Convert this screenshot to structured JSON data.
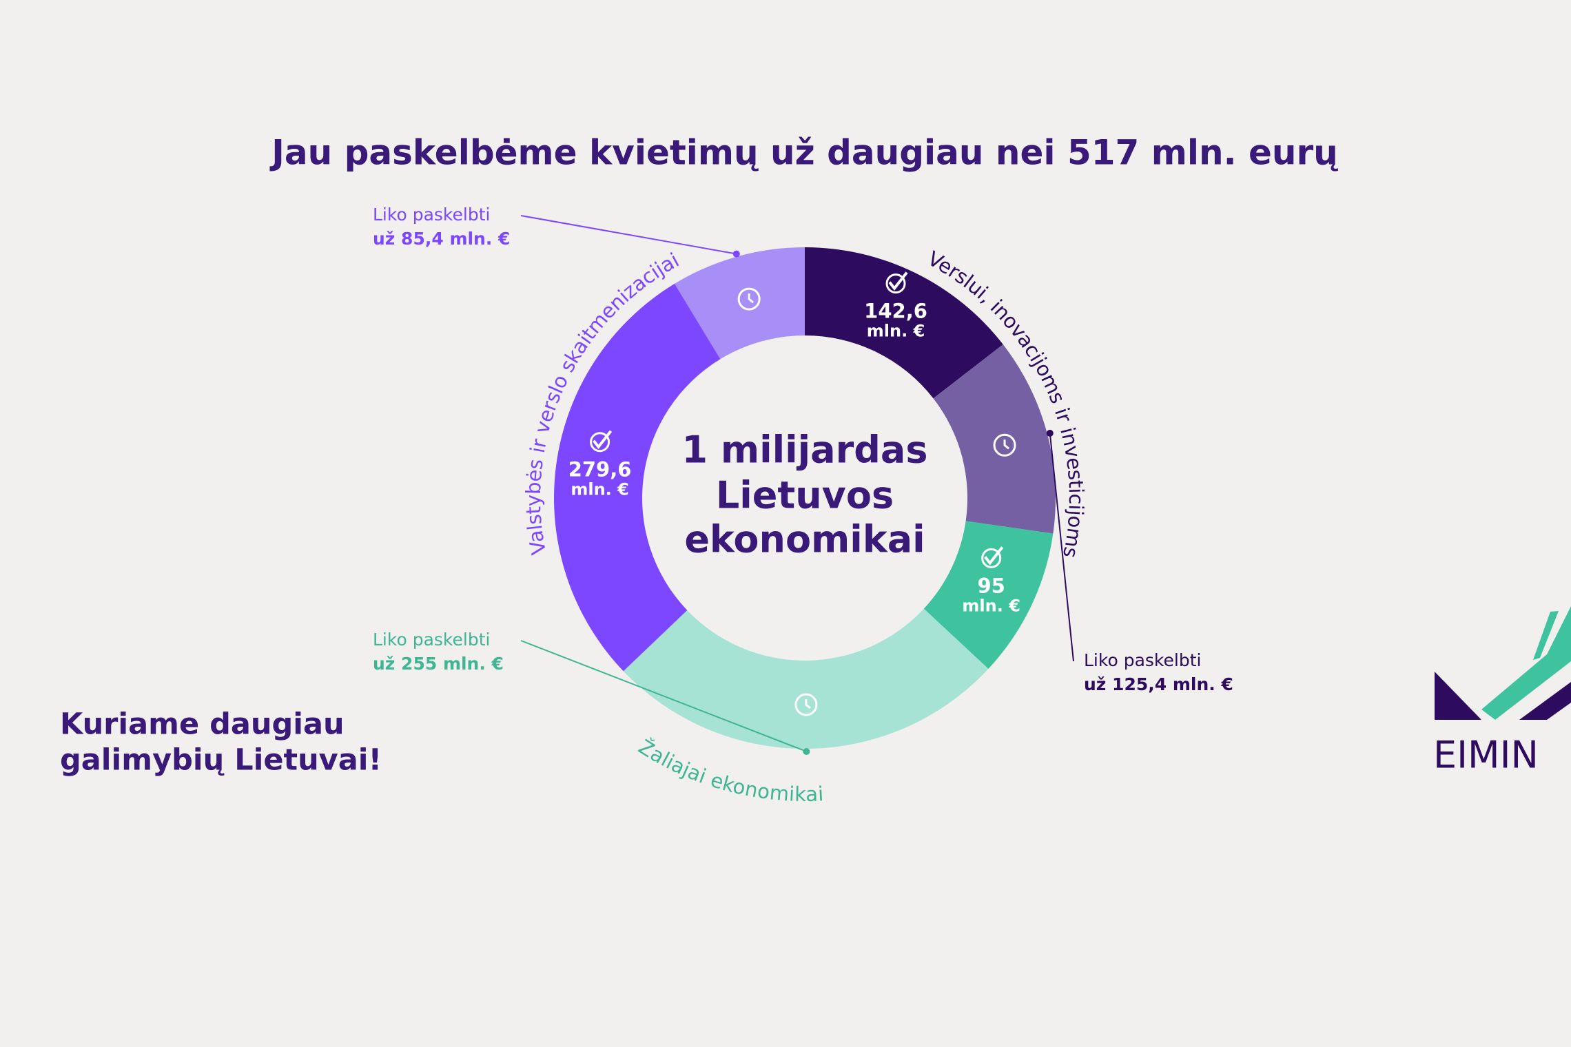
{
  "chart_data": {
    "type": "donut",
    "title": "Jau paskelbėme kvietimų už daugiau nei 517 mln. eurų",
    "center_label": [
      "1 milijardas",
      "Lietuvos",
      "ekonomikai"
    ],
    "series": [
      {
        "name": "Verslui, inovacijoms ir investicijoms",
        "colors": [
          "#2d0b5e",
          "#7660a4"
        ],
        "values": [
          142.6,
          125.4
        ],
        "value_labels": [
          [
            "142,6",
            "mln. €"
          ],
          [
            "Liko paskelbti",
            "už 125,4 mln. €"
          ]
        ]
      },
      {
        "name": "Žaliajai ekonomikai",
        "colors": [
          "#3fc29e",
          "#a6e3d4"
        ],
        "values": [
          95,
          255
        ],
        "value_labels": [
          [
            "95",
            "mln. €"
          ],
          [
            "Liko paskelbti",
            "už 255 mln. €"
          ]
        ]
      },
      {
        "name": "Valstybės ir verslo skaitmenizacijai",
        "colors": [
          "#7d47ff",
          "#a88ef7"
        ],
        "values": [
          279.6,
          85.4
        ],
        "value_labels": [
          [
            "279,6",
            "mln. €"
          ],
          [
            "Liko paskelbti",
            "už 85,4 mln. €"
          ]
        ]
      }
    ]
  },
  "tagline": [
    "Kuriame daugiau",
    "galimybių Lietuvai!"
  ],
  "logo": "EIMIN"
}
